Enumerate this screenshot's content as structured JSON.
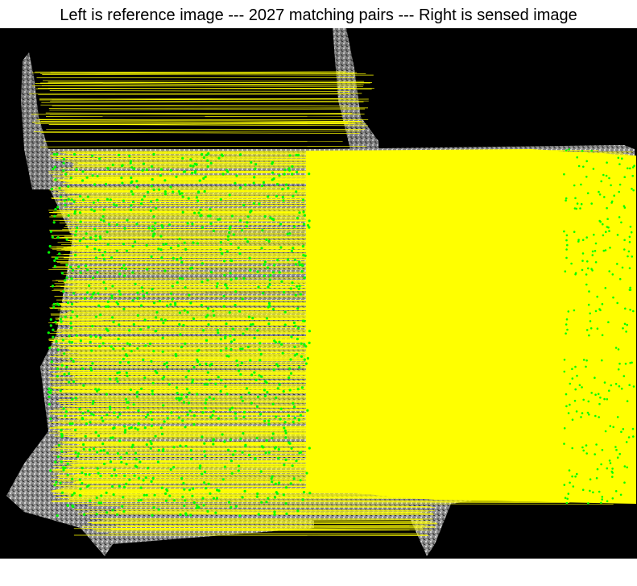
{
  "figure": {
    "title": "Left is reference image --- 2027 matching pairs --- Right is sensed image",
    "match_count": 2027,
    "colors": {
      "background": "#000000",
      "match_line": "#ffff00",
      "keypoint": "#00ff00",
      "figure_bg": "#ffffff"
    }
  }
}
